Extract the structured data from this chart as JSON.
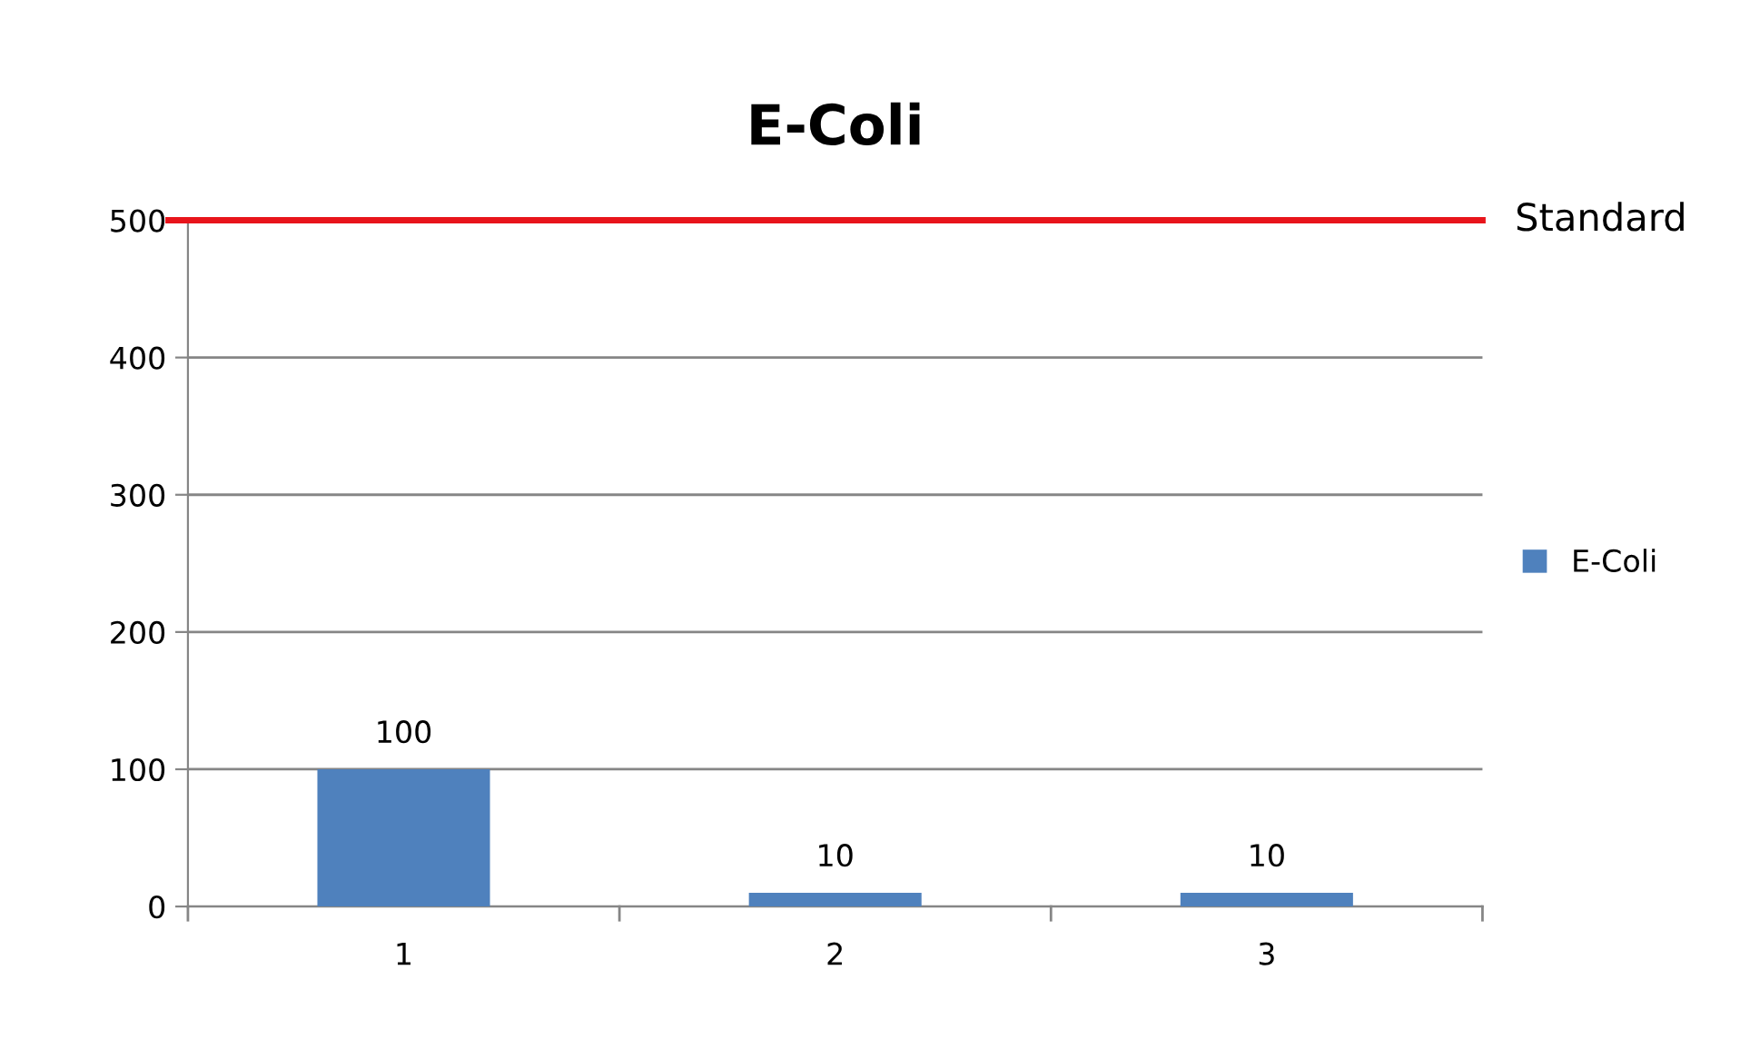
{
  "chart_data": {
    "type": "bar",
    "title": "E-Coli",
    "categories": [
      "1",
      "2",
      "3"
    ],
    "series": [
      {
        "name": "E-Coli",
        "color": "#4f81bd",
        "values": [
          100,
          10,
          10
        ]
      }
    ],
    "ylim": [
      0,
      500
    ],
    "yticks": [
      0,
      100,
      200,
      300,
      400,
      500
    ],
    "grid": "y",
    "legend": "right",
    "data_labels": true,
    "ref_lines": [
      {
        "axis": "y",
        "value": 500,
        "label": "Standard",
        "color": "#e8141b",
        "line_style": "solid"
      }
    ]
  }
}
